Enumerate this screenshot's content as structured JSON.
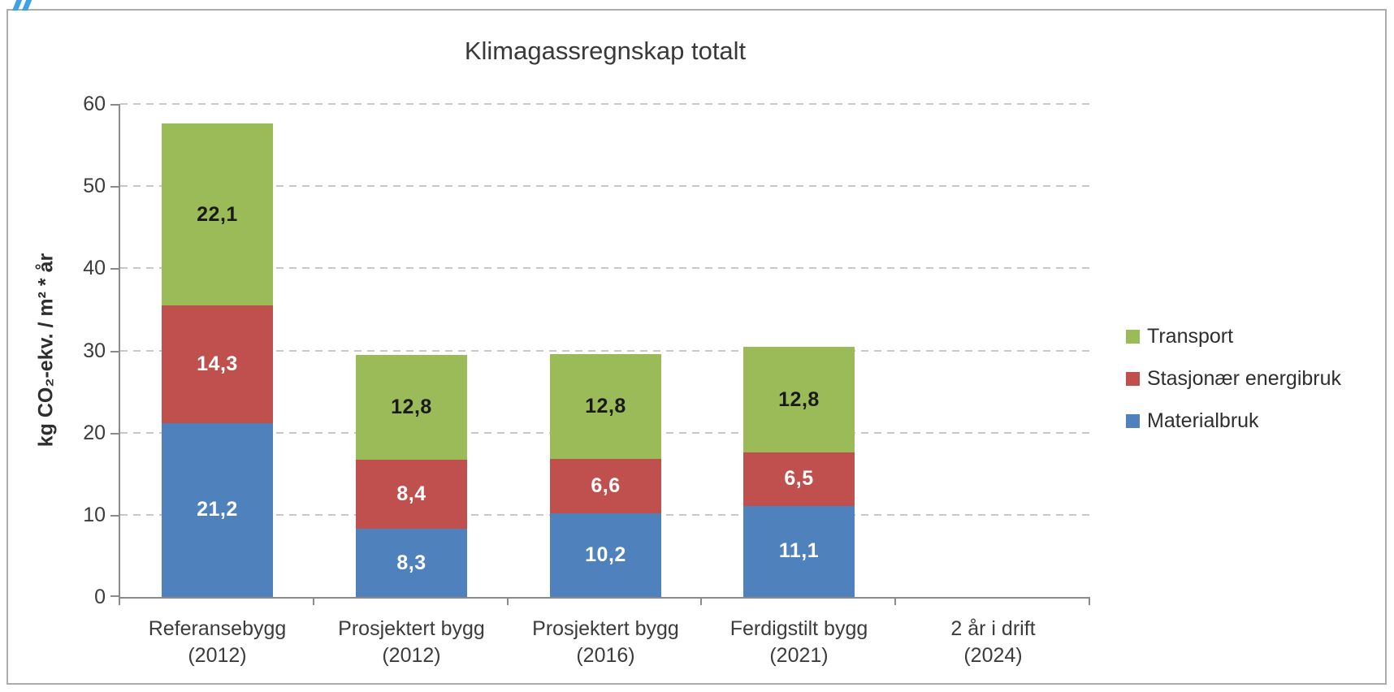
{
  "decoration": {
    "corner_mark_color": "#3fa3e3"
  },
  "colors": {
    "frame_border": "#acacac",
    "axis": "#8a8a8a",
    "grid": "#c8c8c8",
    "text": "#3c3c3c"
  },
  "chart_data": {
    "type": "bar",
    "variant": "stacked",
    "title": "Klimagassregnskap totalt",
    "xlabel": "",
    "ylabel": "kg CO₂-ekv. / m² * år",
    "grid": "dashed-horizontal",
    "y_axis": {
      "min": 0,
      "max": 60,
      "step": 10,
      "ticks": [
        0,
        10,
        20,
        30,
        40,
        50,
        60
      ]
    },
    "categories": [
      "Referansebygg\n(2012)",
      "Prosjektert bygg\n(2012)",
      "Prosjektert bygg\n(2016)",
      "Ferdigstilt bygg\n(2021)",
      "2 år i drift\n(2024)"
    ],
    "series": [
      {
        "name": "Materialbruk",
        "color": "#4f81bd",
        "label_color": "#ffffff",
        "values": [
          21.2,
          8.3,
          10.2,
          11.1,
          null
        ],
        "labels": [
          "21,2",
          "8,3",
          "10,2",
          "11,1",
          ""
        ]
      },
      {
        "name": "Stasjonær energibruk",
        "color": "#c0504d",
        "label_color": "#ffffff",
        "values": [
          14.3,
          8.4,
          6.6,
          6.5,
          null
        ],
        "labels": [
          "14,3",
          "8,4",
          "6,6",
          "6,5",
          ""
        ]
      },
      {
        "name": "Transport",
        "color": "#9bbb59",
        "label_color": "#1a1a1a",
        "values": [
          22.1,
          12.8,
          12.8,
          12.8,
          null
        ],
        "labels": [
          "22,1",
          "12,8",
          "12,8",
          "12,8",
          ""
        ]
      }
    ],
    "stack_order_bottom_to_top": [
      "Materialbruk",
      "Stasjonær energibruk",
      "Transport"
    ],
    "legend": {
      "position": "right",
      "items": [
        "Transport",
        "Stasjonær energibruk",
        "Materialbruk"
      ]
    }
  }
}
